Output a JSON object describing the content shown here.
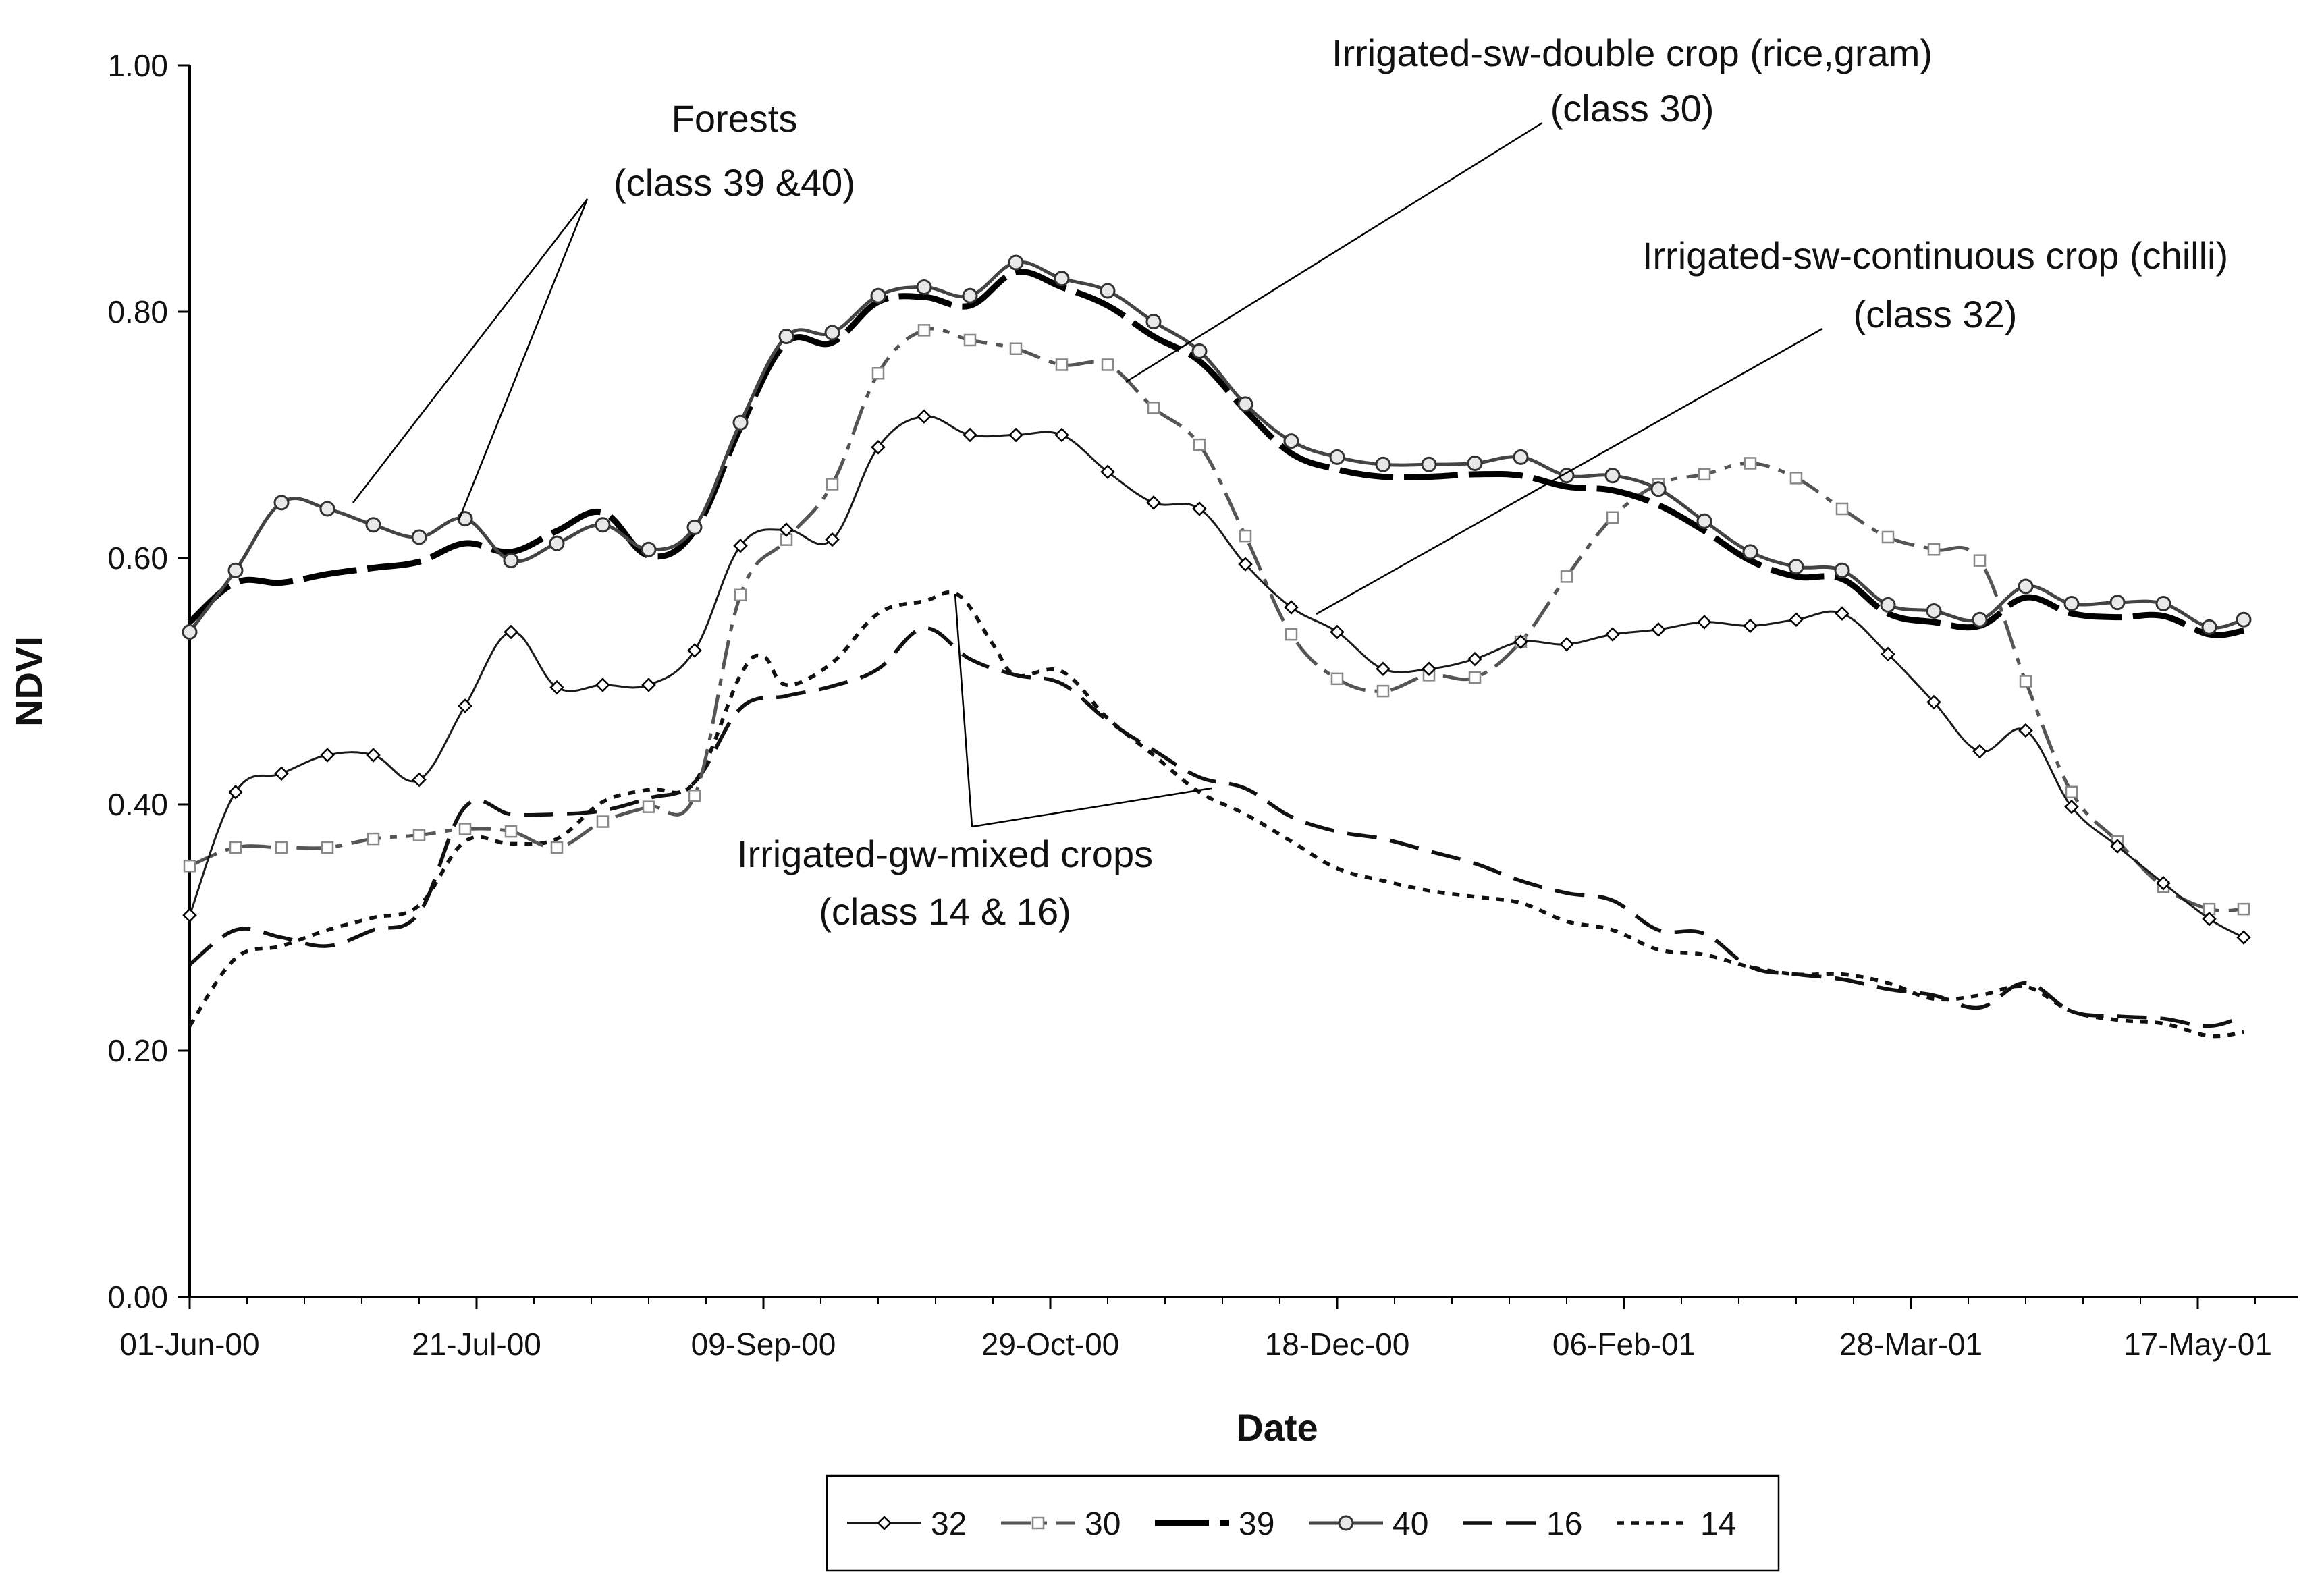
{
  "chart_data": {
    "type": "line",
    "title": "",
    "xlabel": "Date",
    "ylabel": "NDVI",
    "ylim": [
      0,
      1
    ],
    "yticks": [
      "0.00",
      "0.20",
      "0.40",
      "0.60",
      "0.80",
      "1.00"
    ],
    "xrange_days": [
      0,
      360
    ],
    "xticks": [
      {
        "day": 0,
        "label": "01-Jun-00"
      },
      {
        "day": 50,
        "label": "21-Jul-00"
      },
      {
        "day": 100,
        "label": "09-Sep-00"
      },
      {
        "day": 150,
        "label": "29-Oct-00"
      },
      {
        "day": 200,
        "label": "18-Dec-00"
      },
      {
        "day": 250,
        "label": "06-Feb-01"
      },
      {
        "day": 300,
        "label": "28-Mar-01"
      },
      {
        "day": 350,
        "label": "17-May-01"
      }
    ],
    "grid": false,
    "legend_position": "bottom-center",
    "series": [
      {
        "name": "32",
        "style": "thin-diamond",
        "color": "#1a1a1a",
        "x": [
          0,
          8,
          16,
          24,
          32,
          40,
          48,
          56,
          64,
          72,
          80,
          88,
          96,
          104,
          112,
          120,
          128,
          136,
          144,
          152,
          160,
          168,
          176,
          184,
          192,
          200,
          208,
          216,
          224,
          232,
          240,
          248,
          256,
          264,
          272,
          280,
          288,
          296,
          304,
          312,
          320,
          328,
          336,
          344,
          352,
          358
        ],
        "y": [
          0.31,
          0.41,
          0.425,
          0.44,
          0.44,
          0.42,
          0.48,
          0.54,
          0.495,
          0.497,
          0.497,
          0.525,
          0.61,
          0.623,
          0.615,
          0.69,
          0.715,
          0.7,
          0.7,
          0.7,
          0.67,
          0.645,
          0.64,
          0.595,
          0.56,
          0.54,
          0.51,
          0.51,
          0.518,
          0.532,
          0.53,
          0.538,
          0.542,
          0.548,
          0.545,
          0.55,
          0.555,
          0.522,
          0.483,
          0.443,
          0.46,
          0.398,
          0.366,
          0.336,
          0.307,
          0.292
        ]
      },
      {
        "name": "30",
        "style": "dashdot-square",
        "color": "#555555",
        "x": [
          0,
          8,
          16,
          24,
          32,
          40,
          48,
          56,
          64,
          72,
          80,
          88,
          96,
          104,
          112,
          120,
          128,
          136,
          144,
          152,
          160,
          168,
          176,
          184,
          192,
          200,
          208,
          216,
          224,
          232,
          240,
          248,
          256,
          264,
          272,
          280,
          288,
          296,
          304,
          312,
          320,
          328,
          336,
          344,
          352,
          358
        ],
        "y": [
          0.35,
          0.365,
          0.365,
          0.365,
          0.372,
          0.375,
          0.38,
          0.378,
          0.365,
          0.386,
          0.398,
          0.407,
          0.57,
          0.615,
          0.66,
          0.75,
          0.785,
          0.777,
          0.77,
          0.757,
          0.757,
          0.722,
          0.692,
          0.618,
          0.538,
          0.502,
          0.492,
          0.505,
          0.503,
          0.532,
          0.585,
          0.633,
          0.66,
          0.668,
          0.677,
          0.665,
          0.64,
          0.617,
          0.607,
          0.598,
          0.5,
          0.41,
          0.37,
          0.333,
          0.315,
          0.315
        ]
      },
      {
        "name": "39",
        "style": "thick-longdash",
        "color": "#000000",
        "x": [
          0,
          8,
          16,
          24,
          32,
          40,
          48,
          56,
          64,
          72,
          80,
          88,
          96,
          104,
          112,
          120,
          128,
          136,
          144,
          152,
          160,
          168,
          176,
          184,
          192,
          200,
          208,
          216,
          224,
          232,
          240,
          248,
          256,
          264,
          272,
          280,
          288,
          296,
          304,
          312,
          320,
          328,
          336,
          344,
          352,
          358
        ],
        "y": [
          0.548,
          0.58,
          0.58,
          0.587,
          0.592,
          0.597,
          0.612,
          0.605,
          0.622,
          0.637,
          0.602,
          0.622,
          0.706,
          0.775,
          0.775,
          0.808,
          0.812,
          0.805,
          0.832,
          0.82,
          0.805,
          0.78,
          0.76,
          0.72,
          0.685,
          0.672,
          0.666,
          0.666,
          0.668,
          0.667,
          0.658,
          0.655,
          0.643,
          0.622,
          0.598,
          0.585,
          0.583,
          0.555,
          0.548,
          0.545,
          0.568,
          0.555,
          0.552,
          0.553,
          0.538,
          0.541
        ]
      },
      {
        "name": "40",
        "style": "circle",
        "color": "#444444",
        "x": [
          0,
          8,
          16,
          24,
          32,
          40,
          48,
          56,
          64,
          72,
          80,
          88,
          96,
          104,
          112,
          120,
          128,
          136,
          144,
          152,
          160,
          168,
          176,
          184,
          192,
          200,
          208,
          216,
          224,
          232,
          240,
          248,
          256,
          264,
          272,
          280,
          288,
          296,
          304,
          312,
          320,
          328,
          336,
          344,
          352,
          358
        ],
        "y": [
          0.54,
          0.59,
          0.645,
          0.64,
          0.627,
          0.617,
          0.632,
          0.598,
          0.612,
          0.627,
          0.607,
          0.625,
          0.71,
          0.78,
          0.783,
          0.813,
          0.82,
          0.813,
          0.84,
          0.827,
          0.817,
          0.792,
          0.768,
          0.725,
          0.695,
          0.682,
          0.676,
          0.676,
          0.677,
          0.682,
          0.667,
          0.667,
          0.656,
          0.63,
          0.605,
          0.593,
          0.59,
          0.562,
          0.557,
          0.55,
          0.577,
          0.563,
          0.564,
          0.563,
          0.544,
          0.55
        ]
      },
      {
        "name": "16",
        "style": "longdash",
        "color": "#111111",
        "x": [
          0,
          8,
          16,
          24,
          32,
          40,
          48,
          56,
          64,
          72,
          80,
          88,
          96,
          104,
          112,
          120,
          128,
          136,
          144,
          152,
          160,
          168,
          176,
          184,
          192,
          200,
          208,
          216,
          224,
          232,
          240,
          248,
          256,
          264,
          272,
          280,
          288,
          296,
          304,
          312,
          320,
          328,
          336,
          344,
          352,
          358
        ],
        "y": [
          0.27,
          0.298,
          0.292,
          0.285,
          0.298,
          0.312,
          0.398,
          0.392,
          0.392,
          0.395,
          0.405,
          0.418,
          0.478,
          0.488,
          0.496,
          0.51,
          0.543,
          0.518,
          0.505,
          0.498,
          0.468,
          0.444,
          0.422,
          0.413,
          0.39,
          0.378,
          0.372,
          0.362,
          0.352,
          0.338,
          0.328,
          0.322,
          0.298,
          0.295,
          0.268,
          0.262,
          0.258,
          0.25,
          0.245,
          0.235,
          0.255,
          0.232,
          0.228,
          0.226,
          0.22,
          0.228
        ]
      },
      {
        "name": "14",
        "style": "dotted",
        "color": "#111111",
        "x": [
          0,
          8,
          16,
          24,
          32,
          40,
          48,
          56,
          64,
          72,
          80,
          88,
          96,
          100,
          104,
          112,
          120,
          128,
          134,
          140,
          144,
          152,
          160,
          168,
          176,
          184,
          192,
          200,
          208,
          216,
          224,
          232,
          240,
          248,
          256,
          264,
          272,
          280,
          288,
          296,
          304,
          312,
          320,
          328,
          336,
          344,
          352,
          358
        ],
        "y": [
          0.22,
          0.275,
          0.285,
          0.298,
          0.308,
          0.318,
          0.37,
          0.368,
          0.372,
          0.402,
          0.412,
          0.418,
          0.505,
          0.52,
          0.497,
          0.515,
          0.555,
          0.565,
          0.57,
          0.53,
          0.505,
          0.508,
          0.47,
          0.44,
          0.41,
          0.392,
          0.37,
          0.348,
          0.338,
          0.33,
          0.325,
          0.32,
          0.305,
          0.298,
          0.282,
          0.278,
          0.268,
          0.262,
          0.262,
          0.255,
          0.242,
          0.245,
          0.252,
          0.232,
          0.225,
          0.222,
          0.212,
          0.215
        ]
      }
    ],
    "annotations": [
      {
        "lines": [
          "Forests",
          "(class 39 &40)"
        ]
      },
      {
        "lines": [
          "Irrigated-sw-double crop (rice,gram)",
          "(class 30)"
        ]
      },
      {
        "lines": [
          "Irrigated-sw-continuous crop (chilli)",
          "(class 32)"
        ]
      },
      {
        "lines": [
          "Irrigated-gw-mixed crops",
          "(class 14 & 16)"
        ]
      }
    ]
  }
}
